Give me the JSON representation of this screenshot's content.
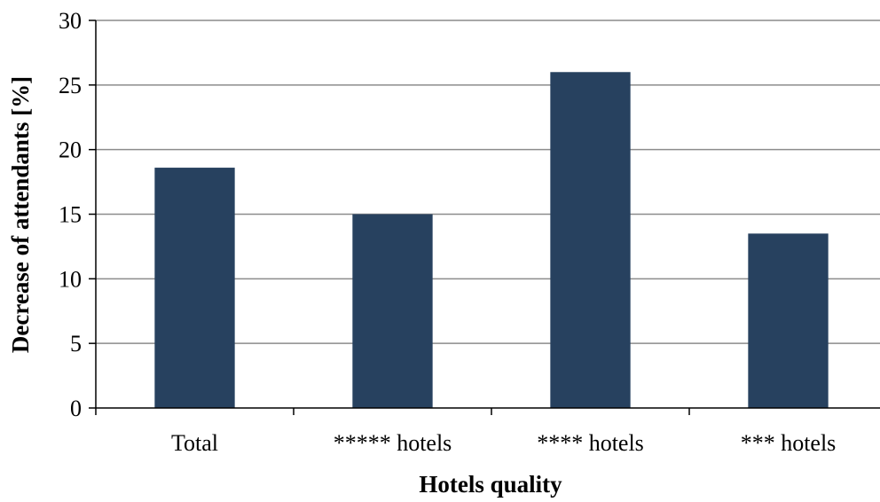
{
  "chart_data": {
    "type": "bar",
    "title": "",
    "xlabel": "Hotels quality",
    "ylabel": "Decrease of attendants [%]",
    "categories": [
      "Total",
      "***** hotels",
      "**** hotels",
      "*** hotels"
    ],
    "values": [
      18.6,
      15.0,
      26.0,
      13.5
    ],
    "ylim": [
      0,
      30
    ],
    "yticks": [
      0,
      5,
      10,
      15,
      20,
      25,
      30
    ],
    "grid": true,
    "legend": "none",
    "bar_color": "#27415F",
    "grid_color": "#8C8C8C",
    "axis_color": "#000000"
  }
}
